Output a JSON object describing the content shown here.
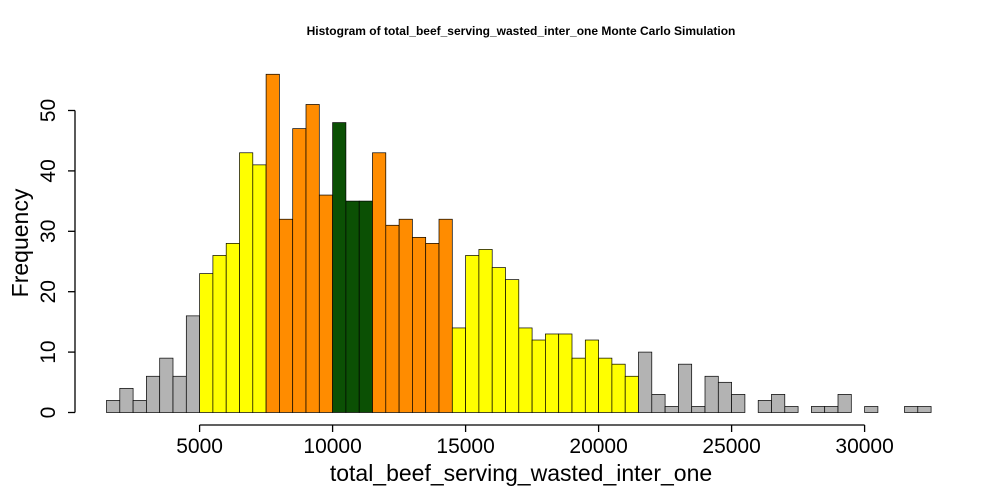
{
  "chart_data": {
    "type": "bar",
    "title": "Histogram of  total_beef_serving_wasted_inter_one  Monte Carlo Simulation",
    "xlabel": "total_beef_serving_wasted_inter_one",
    "ylabel": "Frequency",
    "xlim": [
      1500,
      32500
    ],
    "ylim": [
      0,
      56
    ],
    "bin_width": 500,
    "x_ticks": [
      5000,
      10000,
      15000,
      20000,
      25000,
      30000
    ],
    "x_tick_labels": [
      "5000",
      "10000",
      "15000",
      "20000",
      "25000",
      "30000"
    ],
    "y_ticks": [
      0,
      10,
      20,
      30,
      40,
      50
    ],
    "y_tick_labels": [
      "0",
      "10",
      "20",
      "30",
      "40",
      "50"
    ],
    "colors": {
      "tail": "#b3b3b3",
      "outer": "#ffff00",
      "inner": "#ff8c00",
      "center": "#0b5004",
      "edge": "#000000"
    },
    "bins": [
      {
        "x0": 1500,
        "x1": 2000,
        "count": 2,
        "band": "tail"
      },
      {
        "x0": 2000,
        "x1": 2500,
        "count": 4,
        "band": "tail"
      },
      {
        "x0": 2500,
        "x1": 3000,
        "count": 2,
        "band": "tail"
      },
      {
        "x0": 3000,
        "x1": 3500,
        "count": 6,
        "band": "tail"
      },
      {
        "x0": 3500,
        "x1": 4000,
        "count": 9,
        "band": "tail"
      },
      {
        "x0": 4000,
        "x1": 4500,
        "count": 6,
        "band": "tail"
      },
      {
        "x0": 4500,
        "x1": 5000,
        "count": 16,
        "band": "tail"
      },
      {
        "x0": 5000,
        "x1": 5500,
        "count": 23,
        "band": "outer"
      },
      {
        "x0": 5500,
        "x1": 6000,
        "count": 26,
        "band": "outer"
      },
      {
        "x0": 6000,
        "x1": 6500,
        "count": 28,
        "band": "outer"
      },
      {
        "x0": 6500,
        "x1": 7000,
        "count": 43,
        "band": "outer"
      },
      {
        "x0": 7000,
        "x1": 7500,
        "count": 41,
        "band": "outer"
      },
      {
        "x0": 7500,
        "x1": 8000,
        "count": 56,
        "band": "inner"
      },
      {
        "x0": 8000,
        "x1": 8500,
        "count": 32,
        "band": "inner"
      },
      {
        "x0": 8500,
        "x1": 9000,
        "count": 47,
        "band": "inner"
      },
      {
        "x0": 9000,
        "x1": 9500,
        "count": 51,
        "band": "inner"
      },
      {
        "x0": 9500,
        "x1": 10000,
        "count": 36,
        "band": "inner"
      },
      {
        "x0": 10000,
        "x1": 10500,
        "count": 48,
        "band": "center"
      },
      {
        "x0": 10500,
        "x1": 11000,
        "count": 35,
        "band": "center"
      },
      {
        "x0": 11000,
        "x1": 11500,
        "count": 35,
        "band": "center"
      },
      {
        "x0": 11500,
        "x1": 12000,
        "count": 43,
        "band": "inner"
      },
      {
        "x0": 12000,
        "x1": 12500,
        "count": 31,
        "band": "inner"
      },
      {
        "x0": 12500,
        "x1": 13000,
        "count": 32,
        "band": "inner"
      },
      {
        "x0": 13000,
        "x1": 13500,
        "count": 29,
        "band": "inner"
      },
      {
        "x0": 13500,
        "x1": 14000,
        "count": 28,
        "band": "inner"
      },
      {
        "x0": 14000,
        "x1": 14500,
        "count": 32,
        "band": "inner"
      },
      {
        "x0": 14500,
        "x1": 15000,
        "count": 14,
        "band": "outer"
      },
      {
        "x0": 15000,
        "x1": 15500,
        "count": 26,
        "band": "outer"
      },
      {
        "x0": 15500,
        "x1": 16000,
        "count": 27,
        "band": "outer"
      },
      {
        "x0": 16000,
        "x1": 16500,
        "count": 24,
        "band": "outer"
      },
      {
        "x0": 16500,
        "x1": 17000,
        "count": 22,
        "band": "outer"
      },
      {
        "x0": 17000,
        "x1": 17500,
        "count": 14,
        "band": "outer"
      },
      {
        "x0": 17500,
        "x1": 18000,
        "count": 12,
        "band": "outer"
      },
      {
        "x0": 18000,
        "x1": 18500,
        "count": 13,
        "band": "outer"
      },
      {
        "x0": 18500,
        "x1": 19000,
        "count": 13,
        "band": "outer"
      },
      {
        "x0": 19000,
        "x1": 19500,
        "count": 9,
        "band": "outer"
      },
      {
        "x0": 19500,
        "x1": 20000,
        "count": 12,
        "band": "outer"
      },
      {
        "x0": 20000,
        "x1": 20500,
        "count": 9,
        "band": "outer"
      },
      {
        "x0": 20500,
        "x1": 21000,
        "count": 8,
        "band": "outer"
      },
      {
        "x0": 21000,
        "x1": 21500,
        "count": 6,
        "band": "outer"
      },
      {
        "x0": 21500,
        "x1": 22000,
        "count": 10,
        "band": "tail"
      },
      {
        "x0": 22000,
        "x1": 22500,
        "count": 3,
        "band": "tail"
      },
      {
        "x0": 22500,
        "x1": 23000,
        "count": 1,
        "band": "tail"
      },
      {
        "x0": 23000,
        "x1": 23500,
        "count": 8,
        "band": "tail"
      },
      {
        "x0": 23500,
        "x1": 24000,
        "count": 1,
        "band": "tail"
      },
      {
        "x0": 24000,
        "x1": 24500,
        "count": 6,
        "band": "tail"
      },
      {
        "x0": 24500,
        "x1": 25000,
        "count": 5,
        "band": "tail"
      },
      {
        "x0": 25000,
        "x1": 25500,
        "count": 3,
        "band": "tail"
      },
      {
        "x0": 25500,
        "x1": 26000,
        "count": 0,
        "band": "tail"
      },
      {
        "x0": 26000,
        "x1": 26500,
        "count": 2,
        "band": "tail"
      },
      {
        "x0": 26500,
        "x1": 27000,
        "count": 3,
        "band": "tail"
      },
      {
        "x0": 27000,
        "x1": 27500,
        "count": 1,
        "band": "tail"
      },
      {
        "x0": 27500,
        "x1": 28000,
        "count": 0,
        "band": "tail"
      },
      {
        "x0": 28000,
        "x1": 28500,
        "count": 1,
        "band": "tail"
      },
      {
        "x0": 28500,
        "x1": 29000,
        "count": 1,
        "band": "tail"
      },
      {
        "x0": 29000,
        "x1": 29500,
        "count": 3,
        "band": "tail"
      },
      {
        "x0": 29500,
        "x1": 30000,
        "count": 0,
        "band": "tail"
      },
      {
        "x0": 30000,
        "x1": 30500,
        "count": 1,
        "band": "tail"
      },
      {
        "x0": 30500,
        "x1": 31000,
        "count": 0,
        "band": "tail"
      },
      {
        "x0": 31000,
        "x1": 31500,
        "count": 0,
        "band": "tail"
      },
      {
        "x0": 31500,
        "x1": 32000,
        "count": 1,
        "band": "tail"
      },
      {
        "x0": 32000,
        "x1": 32500,
        "count": 1,
        "band": "tail"
      }
    ]
  }
}
